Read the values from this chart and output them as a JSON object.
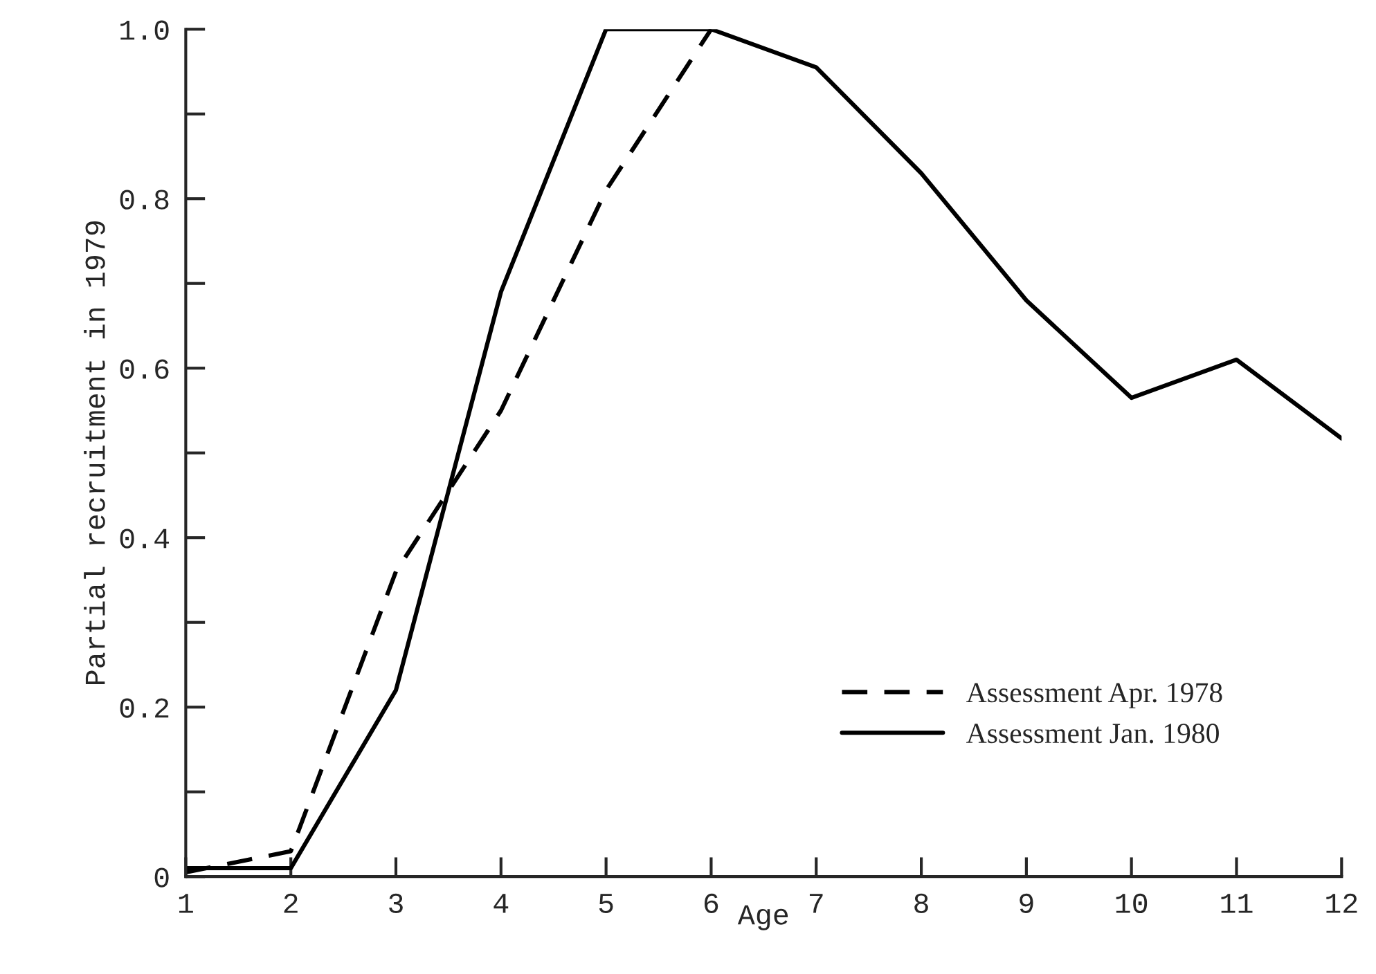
{
  "chart_data": {
    "type": "line",
    "xlabel": "Age",
    "ylabel": "Partial recruitment in 1979",
    "x": [
      1,
      2,
      3,
      4,
      5,
      6,
      7,
      8,
      9,
      10,
      11,
      12
    ],
    "series": [
      {
        "name": "Assessment Apr. 1978",
        "color": "#000000",
        "line_style": "dashed",
        "values": [
          0.005,
          0.03,
          0.36,
          0.55,
          0.81,
          1.0,
          null,
          null,
          null,
          null,
          null,
          null
        ]
      },
      {
        "name": "Assessment Jan. 1980",
        "color": "#000000",
        "line_style": "solid",
        "values": [
          0.01,
          0.01,
          0.22,
          0.69,
          1.0,
          1.0,
          0.955,
          0.83,
          0.68,
          0.565,
          0.61,
          0.517
        ]
      }
    ],
    "xlim": [
      1,
      12
    ],
    "xticks": [
      1,
      2,
      3,
      4,
      5,
      6,
      7,
      8,
      9,
      10,
      11,
      12
    ],
    "ylim": [
      0,
      1.0
    ],
    "yticks": [
      {
        "value": 0,
        "label": "0"
      },
      {
        "value": 0.1,
        "label": null
      },
      {
        "value": 0.2,
        "label": "0.2"
      },
      {
        "value": 0.3,
        "label": null
      },
      {
        "value": 0.4,
        "label": "0.4"
      },
      {
        "value": 0.5,
        "label": null
      },
      {
        "value": 0.6,
        "label": "0.6"
      },
      {
        "value": 0.7,
        "label": null
      },
      {
        "value": 0.8,
        "label": "0.8"
      },
      {
        "value": 0.9,
        "label": null
      },
      {
        "value": 1.0,
        "label": "1.0"
      }
    ],
    "grid": false,
    "legend": "bottom right",
    "marker": "none"
  }
}
